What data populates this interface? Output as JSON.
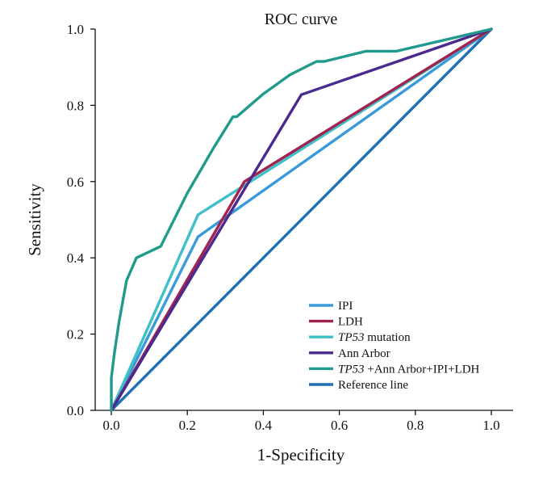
{
  "chart_data": {
    "type": "line",
    "title": "ROC curve",
    "xlabel": "1-Specificity",
    "ylabel": "Sensitivity",
    "xlim": [
      0.0,
      1.0
    ],
    "ylim": [
      0.0,
      1.0
    ],
    "xticks": [
      "0.0",
      "0.2",
      "0.4",
      "0.6",
      "0.8",
      "1.0"
    ],
    "yticks": [
      "0.0",
      "0.2",
      "0.4",
      "0.6",
      "0.8",
      "1.0"
    ],
    "grid": false,
    "legend_position": "bottom-right",
    "series": [
      {
        "name": "IPI",
        "color": "#3a9ad9",
        "x": [
          0.0,
          0.228,
          1.0
        ],
        "y": [
          0.0,
          0.455,
          1.0
        ]
      },
      {
        "name": "LDH",
        "color": "#a3234f",
        "x": [
          0.0,
          0.35,
          1.0
        ],
        "y": [
          0.0,
          0.6,
          1.0
        ]
      },
      {
        "name": "TP53 mutation",
        "name_italic": "TP53",
        "name_rest": " mutation",
        "color": "#3fbfc6",
        "x": [
          0.0,
          0.228,
          1.0
        ],
        "y": [
          0.0,
          0.513,
          1.0
        ]
      },
      {
        "name": "Ann Arbor",
        "color": "#4a2a8e",
        "x": [
          0.0,
          0.5,
          1.0
        ],
        "y": [
          0.0,
          0.828,
          1.0
        ]
      },
      {
        "name": "TP53 +Ann Arbor+IPI+LDH",
        "name_italic": "TP53",
        "name_rest": " +Ann Arbor+IPI+LDH",
        "color": "#1f9a8c",
        "x": [
          0.0,
          0.0,
          0.008,
          0.02,
          0.04,
          0.066,
          0.13,
          0.2,
          0.27,
          0.32,
          0.33,
          0.4,
          0.47,
          0.54,
          0.56,
          0.67,
          0.75,
          1.0
        ],
        "y": [
          0.0,
          0.085,
          0.15,
          0.23,
          0.34,
          0.4,
          0.43,
          0.57,
          0.69,
          0.77,
          0.77,
          0.83,
          0.88,
          0.915,
          0.915,
          0.942,
          0.942,
          1.0
        ]
      },
      {
        "name": "Reference line",
        "color": "#1f6fb5",
        "x": [
          0.0,
          1.0
        ],
        "y": [
          0.0,
          1.0
        ]
      }
    ]
  }
}
